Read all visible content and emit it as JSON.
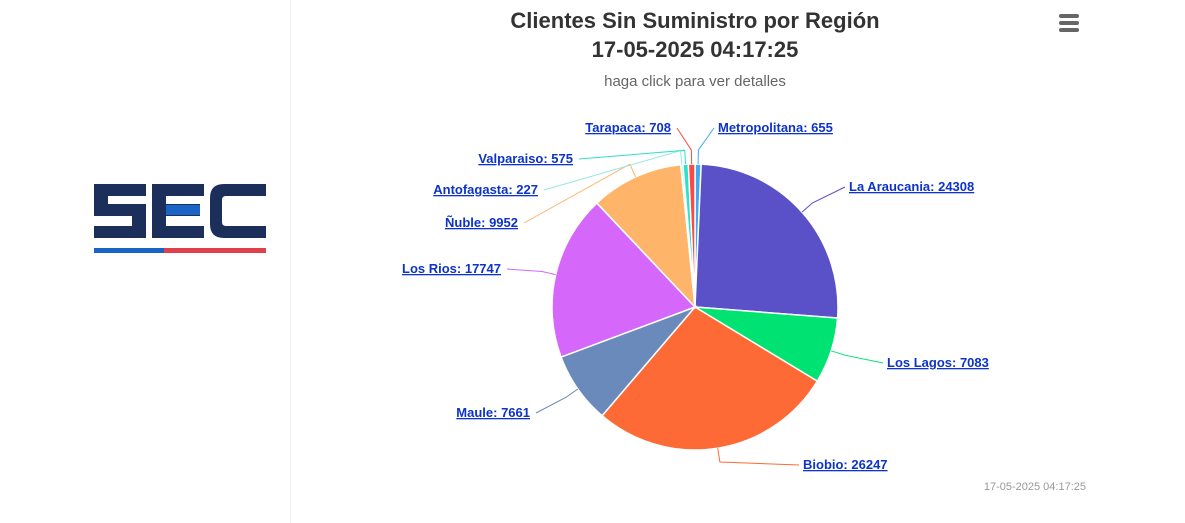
{
  "chart_data": {
    "type": "pie",
    "title": "Clientes Sin Suministro por Región",
    "title_line2": "17-05-2025 04:17:25",
    "subtitle": "haga click para ver detalles",
    "categories": [
      "Metropolitana",
      "La Araucania",
      "Los Lagos",
      "Biobio",
      "Maule",
      "Los Rios",
      "Ñuble",
      "Antofagasta",
      "Valparaiso",
      "Tarapaca"
    ],
    "values": [
      655,
      24308,
      7083,
      26247,
      7661,
      17747,
      9952,
      227,
      575,
      708
    ],
    "labels": [
      "Metropolitana: 655",
      "La Araucania: 24308",
      "Los Lagos: 7083",
      "Biobio: 26247",
      "Maule: 7661",
      "Los Rios: 17747",
      "Ñuble: 9952",
      "Antofagasta: 227",
      "Valparaiso: 575",
      "Tarapaca: 708"
    ],
    "colors": [
      "#3fa9f5",
      "#5a50c8",
      "#00e272",
      "#fe6a35",
      "#6b8abc",
      "#d568fb",
      "#feb56a",
      "#91e8e1",
      "#2ee0ca",
      "#fa4b42"
    ],
    "legend": "none"
  },
  "footer": {
    "credit": "17-05-2025 04:17:25"
  },
  "logo": {
    "text": "SEC",
    "colors": {
      "main": "#1b2f5a",
      "blue": "#1a64c8",
      "red": "#e0404a"
    }
  },
  "toolbar": {
    "menu_icon": "hamburger-menu-icon"
  }
}
